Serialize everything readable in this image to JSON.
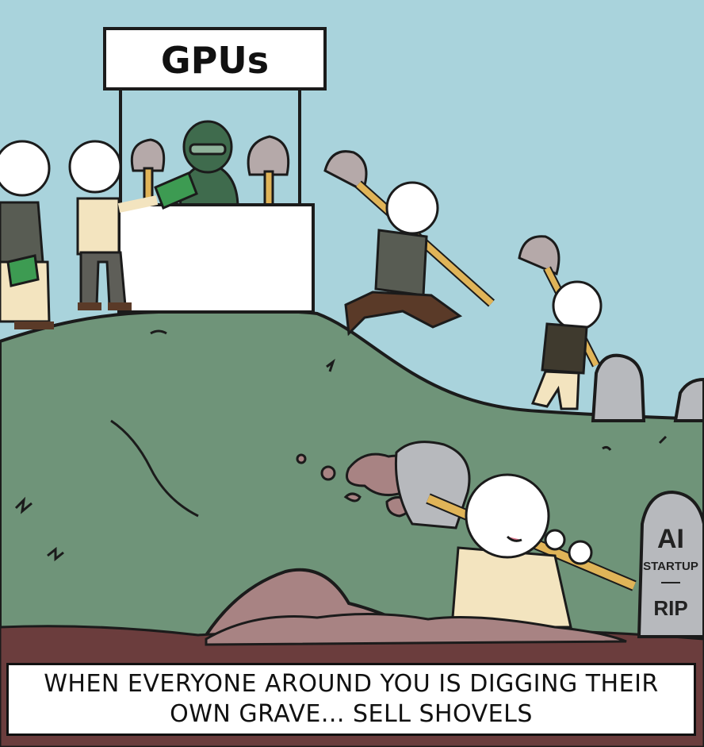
{
  "stand_sign": "GPUs",
  "tombstone": {
    "line1": "AI",
    "line2": "STARTUP",
    "line3": "RIP"
  },
  "caption": {
    "line1": "WHEN EVERYONE AROUND YOU IS DIGGING THEIR",
    "line2": "OWN GRAVE... SELL SHOVELS"
  },
  "colors": {
    "sky": "#a9d3dc",
    "hill": "#6f9479",
    "dirt": "#a88383",
    "stone": "#b7b9bd",
    "stand": "#ffffff",
    "vendor": "#3f6b4d"
  }
}
